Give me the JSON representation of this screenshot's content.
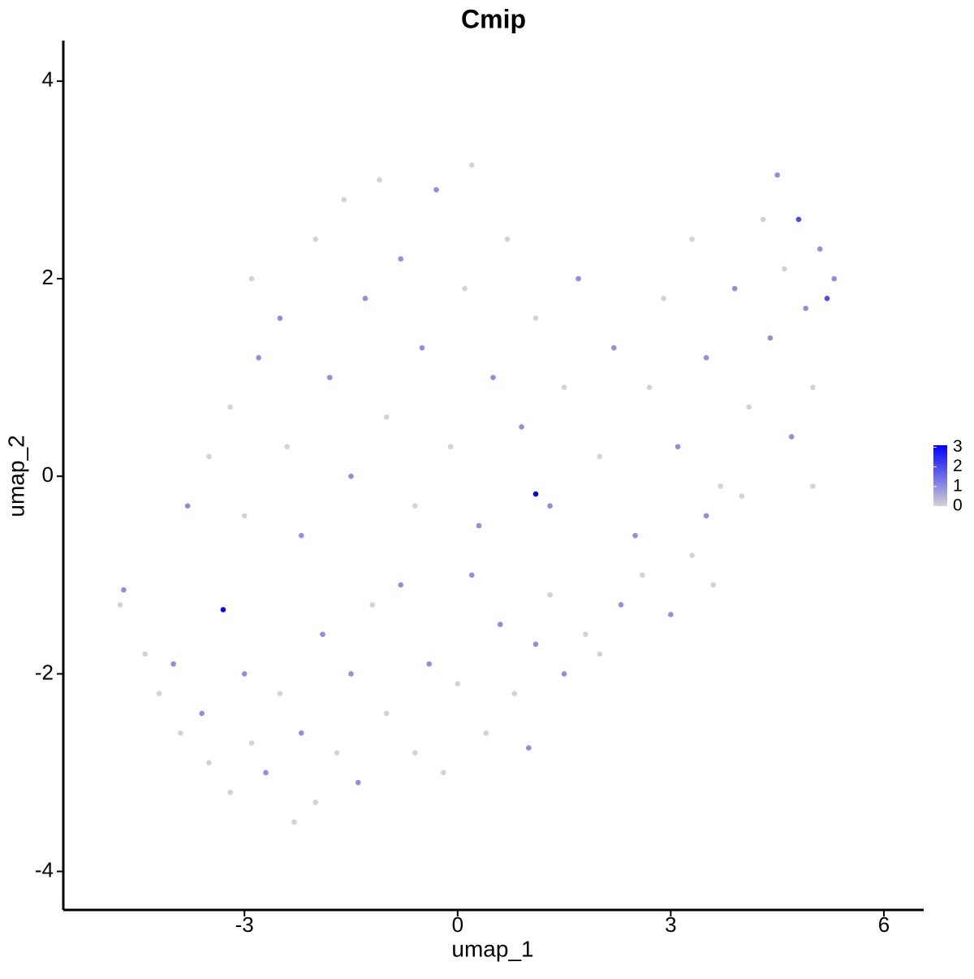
{
  "chart_data": {
    "type": "scatter",
    "title": "Cmip",
    "x_label": "umap_1",
    "y_label": "umap_2",
    "x": [
      -4.7,
      -4.75,
      -4.4,
      -4.2,
      -4.0,
      -3.9,
      -3.6,
      -3.5,
      -3.3,
      -3.2,
      -3.0,
      -2.9,
      -2.7,
      -2.5,
      -2.3,
      -2.2,
      -2.0,
      -1.9,
      -1.7,
      -1.5,
      -1.4,
      -1.2,
      -1.0,
      -0.8,
      -0.6,
      -0.4,
      -0.2,
      0.0,
      0.2,
      0.4,
      0.6,
      0.8,
      1.0,
      1.1,
      1.3,
      1.5,
      1.8,
      2.3,
      2.6,
      3.0,
      3.3,
      3.6,
      3.5,
      4.0,
      1.1,
      -3.8,
      -3.5,
      -3.0,
      -3.2,
      -2.8,
      -2.9,
      -2.5,
      -2.4,
      -2.2,
      -2.0,
      -1.8,
      -1.6,
      -1.5,
      -1.3,
      -1.1,
      -1.0,
      -0.8,
      -0.6,
      -0.5,
      -0.3,
      -0.1,
      0.1,
      0.3,
      0.2,
      0.5,
      0.7,
      0.9,
      1.1,
      1.3,
      1.5,
      1.7,
      2.0,
      2.2,
      2.5,
      2.7,
      2.9,
      3.1,
      3.3,
      3.5,
      3.7,
      3.9,
      4.1,
      4.3,
      4.4,
      4.5,
      4.6,
      4.7,
      4.8,
      4.9,
      5.0,
      5.1,
      5.2,
      5.3,
      5.0,
      2.0
    ],
    "y": [
      -1.15,
      -1.3,
      -1.8,
      -2.2,
      -1.9,
      -2.6,
      -2.4,
      -2.9,
      -1.35,
      -3.2,
      -2.0,
      -2.7,
      -3.0,
      -2.2,
      -3.5,
      -2.6,
      -3.3,
      -1.6,
      -2.8,
      -2.0,
      -3.1,
      -1.3,
      -2.4,
      -1.1,
      -2.8,
      -1.9,
      -3.0,
      -2.1,
      -1.0,
      -2.6,
      -1.5,
      -2.2,
      -2.75,
      -1.7,
      -1.2,
      -2.0,
      -1.6,
      -1.3,
      -1.0,
      -1.4,
      -0.8,
      -1.1,
      -0.4,
      -0.2,
      -0.18,
      -0.3,
      0.2,
      -0.4,
      0.7,
      1.2,
      2.0,
      1.6,
      0.3,
      -0.6,
      2.4,
      1.0,
      2.8,
      0.0,
      1.8,
      3.0,
      0.6,
      2.2,
      -0.3,
      1.3,
      2.9,
      0.3,
      1.9,
      -0.5,
      3.15,
      1.0,
      2.4,
      0.5,
      1.6,
      -0.3,
      0.9,
      2.0,
      0.2,
      1.3,
      -0.6,
      0.9,
      1.8,
      0.3,
      2.4,
      1.2,
      -0.1,
      1.9,
      0.7,
      2.6,
      1.4,
      3.05,
      2.1,
      0.4,
      2.6,
      1.7,
      0.9,
      2.3,
      1.8,
      2.0,
      -0.1,
      -1.8
    ],
    "values": [
      1,
      0,
      0,
      0,
      1,
      0,
      1,
      0,
      3,
      0,
      1,
      0,
      1,
      0,
      0,
      1,
      0,
      1,
      0,
      1,
      1,
      0,
      0,
      1,
      0,
      1,
      0,
      0,
      1,
      0,
      1,
      0,
      1,
      1,
      0,
      1,
      0,
      1,
      0,
      1,
      0,
      0,
      1,
      0,
      3,
      1,
      0,
      0,
      0,
      1,
      0,
      1,
      0,
      1,
      0,
      1,
      0,
      1,
      1,
      0,
      0,
      1,
      0,
      1,
      1,
      0,
      0,
      1,
      0,
      1,
      0,
      1,
      0,
      1,
      0,
      1,
      0,
      1,
      1,
      0,
      0,
      1,
      0,
      1,
      0,
      1,
      0,
      0,
      1,
      1,
      0,
      1,
      2,
      1,
      0,
      1,
      2,
      1,
      0,
      0
    ],
    "xlim": [
      -5.55,
      6.56
    ],
    "ylim": [
      -4.39,
      4.41
    ],
    "xticks": [
      -3,
      0,
      3,
      6
    ],
    "yticks": [
      -4,
      -2,
      0,
      2,
      4
    ],
    "colorbar": {
      "ticks": [
        0,
        1,
        2,
        3
      ],
      "lim": [
        0,
        3.1
      ],
      "low": "#d3d3d3",
      "high": "#0000ff"
    }
  }
}
